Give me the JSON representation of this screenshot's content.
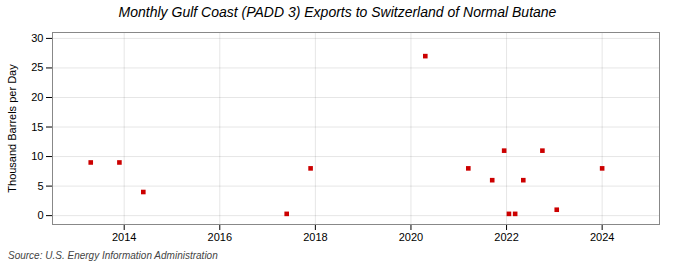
{
  "chart_data": {
    "type": "scatter",
    "title": "Monthly Gulf Coast (PADD 3) Exports to Switzerland of Normal Butane",
    "y_label": "Thousand Barrels per Day",
    "caption": "Source: U.S. Energy Information Administration",
    "x": [
      2013.3,
      2013.9,
      2014.4,
      2017.4,
      2017.9,
      2020.3,
      2021.2,
      2021.7,
      2021.95,
      2022.05,
      2022.18,
      2022.35,
      2022.75,
      2023.05,
      2024.0
    ],
    "values": [
      9,
      9,
      4,
      0.3,
      8,
      27,
      8,
      6,
      11,
      0.3,
      0.3,
      6,
      11,
      1,
      8
    ],
    "color": "#cc0000",
    "marker": "square",
    "xlim": [
      2012.5,
      2025.2
    ],
    "ylim": [
      -1.5,
      31
    ],
    "xticks": [
      2014,
      2016,
      2018,
      2020,
      2022,
      2024
    ],
    "yticks": [
      0,
      5,
      10,
      15,
      20,
      25,
      30
    ],
    "grid": true
  }
}
